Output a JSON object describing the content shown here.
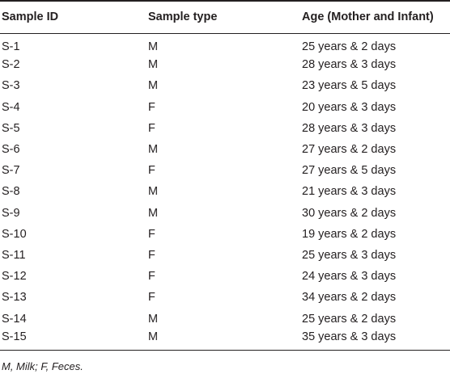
{
  "table": {
    "headers": [
      "Sample ID",
      "Sample type",
      "Age (Mother and Infant)"
    ],
    "rows": [
      [
        "S-1",
        "M",
        "25 years & 2 days"
      ],
      [
        "S-2",
        "M",
        "28 years & 3 days"
      ],
      [
        "S-3",
        "M",
        "23 years & 5 days"
      ],
      [
        "S-4",
        "F",
        "20 years & 3 days"
      ],
      [
        "S-5",
        "F",
        "28 years & 3 days"
      ],
      [
        "S-6",
        "M",
        "27 years & 2 days"
      ],
      [
        "S-7",
        "F",
        "27 years & 5 days"
      ],
      [
        "S-8",
        "M",
        "21 years & 3 days"
      ],
      [
        "S-9",
        "M",
        "30 years & 2 days"
      ],
      [
        "S-10",
        "F",
        "19 years & 2 days"
      ],
      [
        "S-11",
        "F",
        "25 years & 3 days"
      ],
      [
        "S-12",
        "F",
        "24 years & 3 days"
      ],
      [
        "S-13",
        "F",
        "34 years & 2 days"
      ],
      [
        "S-14",
        "M",
        "25 years & 2 days"
      ],
      [
        "S-15",
        "M",
        "35 years & 3 days"
      ]
    ]
  },
  "footnote": "M, Milk; F, Feces."
}
